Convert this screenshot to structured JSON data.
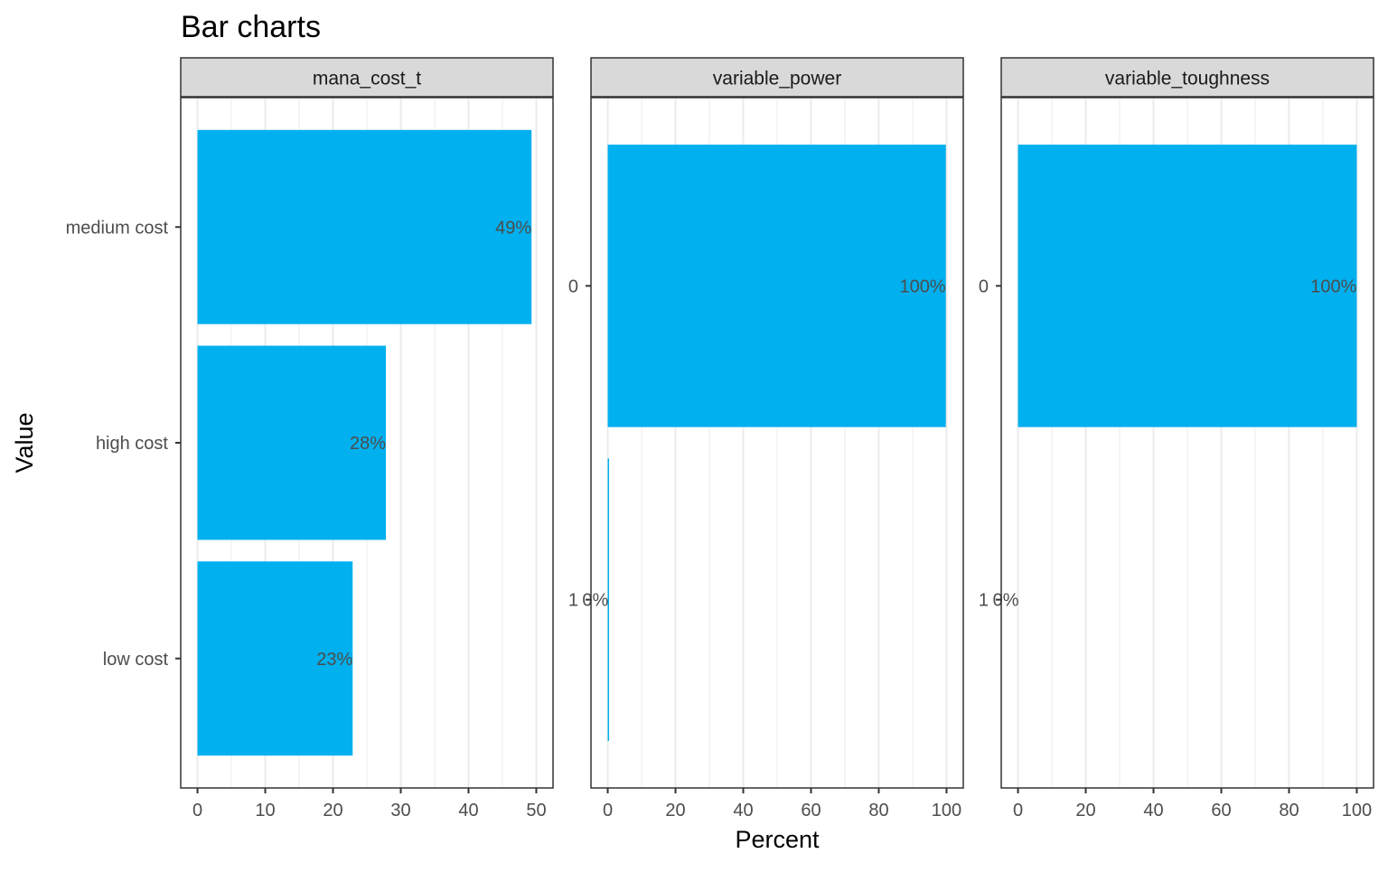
{
  "title": "Bar charts",
  "xlabel": "Percent",
  "ylabel": "Value",
  "colors": {
    "bar": "#00b0ef",
    "strip_fill": "#d9d9d9",
    "panel_border": "#333333",
    "grid": "#ebebeb",
    "tick_text": "#4d4d4d"
  },
  "chart_data": [
    {
      "type": "bar",
      "orientation": "horizontal",
      "facet": "mana_cost_t",
      "categories": [
        "medium cost",
        "high cost",
        "low cost"
      ],
      "values": [
        49.3,
        27.8,
        22.9
      ],
      "labels": [
        "49%",
        "28%",
        "23%"
      ],
      "xlim": [
        0,
        50
      ],
      "xticks": [
        0,
        10,
        20,
        30,
        40,
        50
      ],
      "xlabel": "Percent",
      "ylabel": "Value",
      "grid": true
    },
    {
      "type": "bar",
      "orientation": "horizontal",
      "facet": "variable_power",
      "categories": [
        "0",
        "1"
      ],
      "values": [
        99.8,
        0.2
      ],
      "labels": [
        "100%",
        "0%"
      ],
      "xlim": [
        0,
        100
      ],
      "xticks": [
        0,
        20,
        40,
        60,
        80,
        100
      ],
      "xlabel": "Percent",
      "ylabel": "Value",
      "grid": true
    },
    {
      "type": "bar",
      "orientation": "horizontal",
      "facet": "variable_toughness",
      "categories": [
        "0",
        "1"
      ],
      "values": [
        100,
        0
      ],
      "labels": [
        "100%",
        "0%"
      ],
      "xlim": [
        0,
        100
      ],
      "xticks": [
        0,
        20,
        40,
        60,
        80,
        100
      ],
      "xlabel": "Percent",
      "ylabel": "Value",
      "grid": true
    }
  ]
}
